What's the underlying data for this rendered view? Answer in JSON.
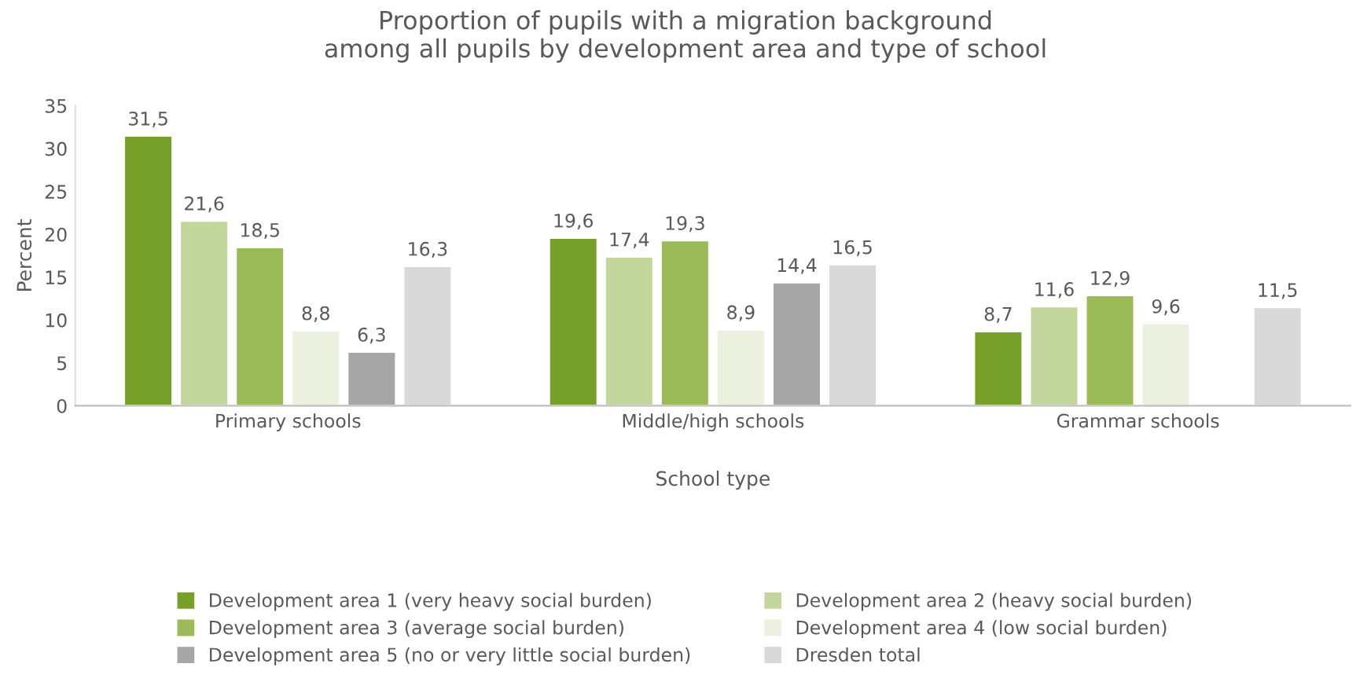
{
  "chart_data": {
    "type": "bar",
    "title": "Proportion of pupils with a migration background\namong all pupils by development area and type of school",
    "xlabel": "School type",
    "ylabel": "Percent",
    "categories": [
      "Primary schools",
      "Middle/high schools",
      "Grammar schools"
    ],
    "series": [
      {
        "name": "Development area 1 (very heavy social burden)",
        "color": "#77a02a",
        "values": [
          31.5,
          19.6,
          8.7
        ],
        "value_labels": [
          "31,5",
          "19,6",
          "8,7"
        ]
      },
      {
        "name": "Development area 2 (heavy social burden)",
        "color": "#c3d69b",
        "values": [
          21.6,
          17.4,
          11.6
        ],
        "value_labels": [
          "21,6",
          "17,4",
          "11,6"
        ]
      },
      {
        "name": "Development area 3 (average social burden)",
        "color": "#9bbb59",
        "values": [
          18.5,
          19.3,
          12.9
        ],
        "value_labels": [
          "18,5",
          "19,3",
          "12,9"
        ]
      },
      {
        "name": "Development area 4 (low social burden)",
        "color": "#ebf1de",
        "values": [
          8.8,
          8.9,
          9.6
        ],
        "value_labels": [
          "8,8",
          "8,9",
          "9,6"
        ]
      },
      {
        "name": "Development area 5 (no or very little social burden)",
        "color": "#a6a6a6",
        "values": [
          6.3,
          14.4,
          null
        ],
        "value_labels": [
          "6,3",
          "14,4",
          null
        ]
      },
      {
        "name": "Dresden total",
        "color": "#d9d9d9",
        "values": [
          16.3,
          16.5,
          11.5
        ],
        "value_labels": [
          "16,3",
          "16,5",
          "11,5"
        ]
      }
    ],
    "ylim": [
      0,
      35
    ],
    "yticks": [
      0,
      5,
      10,
      15,
      20,
      25,
      30,
      35
    ],
    "grid": false,
    "legend": "bottom"
  }
}
